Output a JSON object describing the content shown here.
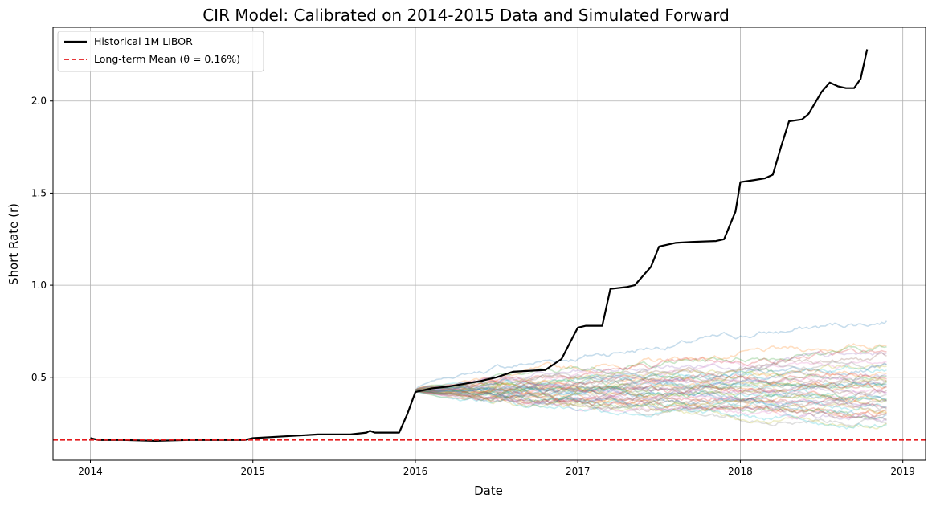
{
  "chart_data": {
    "type": "line",
    "title": "CIR Model: Calibrated on 2014-2015 Data and Simulated Forward",
    "xlabel": "Date",
    "ylabel": "Short Rate (r)",
    "xlim": [
      2013.77,
      2019.14
    ],
    "ylim": [
      0.05,
      2.4
    ],
    "x_ticks": [
      "2014",
      "2015",
      "2016",
      "2017",
      "2018",
      "2019"
    ],
    "y_ticks": [
      "0.5",
      "1.0",
      "1.5",
      "2.0"
    ],
    "grid": true,
    "legend_position": "top-left",
    "legend": [
      "Historical 1M LIBOR",
      "Long-term Mean (θ = 0.16%)"
    ],
    "historical": {
      "name": "Historical 1M LIBOR",
      "color": "#000000",
      "x": [
        2014.0,
        2014.05,
        2014.2,
        2014.4,
        2014.6,
        2014.8,
        2014.95,
        2015.0,
        2015.2,
        2015.4,
        2015.6,
        2015.7,
        2015.72,
        2015.75,
        2015.9,
        2015.95,
        2016.0,
        2016.1,
        2016.2,
        2016.4,
        2016.5,
        2016.6,
        2016.8,
        2016.9,
        2016.97,
        2017.0,
        2017.05,
        2017.15,
        2017.2,
        2017.3,
        2017.35,
        2017.45,
        2017.5,
        2017.6,
        2017.7,
        2017.85,
        2017.9,
        2017.97,
        2018.0,
        2018.08,
        2018.15,
        2018.2,
        2018.25,
        2018.3,
        2018.38,
        2018.42,
        2018.5,
        2018.55,
        2018.6,
        2018.65,
        2018.7,
        2018.74,
        2018.76,
        2018.78
      ],
      "y": [
        0.17,
        0.16,
        0.16,
        0.155,
        0.16,
        0.16,
        0.16,
        0.17,
        0.18,
        0.19,
        0.19,
        0.2,
        0.21,
        0.2,
        0.2,
        0.3,
        0.42,
        0.44,
        0.45,
        0.48,
        0.5,
        0.53,
        0.54,
        0.6,
        0.72,
        0.77,
        0.78,
        0.78,
        0.98,
        0.99,
        1.0,
        1.1,
        1.21,
        1.23,
        1.235,
        1.24,
        1.25,
        1.4,
        1.56,
        1.57,
        1.58,
        1.6,
        1.75,
        1.89,
        1.9,
        1.93,
        2.05,
        2.1,
        2.08,
        2.07,
        2.07,
        2.12,
        2.2,
        2.28
      ]
    },
    "long_term_mean": {
      "name": "Long-term Mean (θ = 0.16%)",
      "color": "#e41a1c",
      "y": 0.16
    },
    "simulations": {
      "count": 50,
      "x_start": 2016.0,
      "x_end": 2018.9,
      "start_value": 0.43,
      "final_values": [
        0.81,
        0.68,
        0.66,
        0.64,
        0.62,
        0.6,
        0.58,
        0.57,
        0.56,
        0.55,
        0.54,
        0.53,
        0.52,
        0.51,
        0.5,
        0.5,
        0.49,
        0.48,
        0.47,
        0.47,
        0.46,
        0.45,
        0.45,
        0.44,
        0.43,
        0.43,
        0.42,
        0.41,
        0.4,
        0.4,
        0.39,
        0.38,
        0.38,
        0.37,
        0.36,
        0.35,
        0.35,
        0.34,
        0.33,
        0.33,
        0.32,
        0.31,
        0.3,
        0.3,
        0.29,
        0.28,
        0.27,
        0.26,
        0.25,
        0.24
      ]
    }
  }
}
